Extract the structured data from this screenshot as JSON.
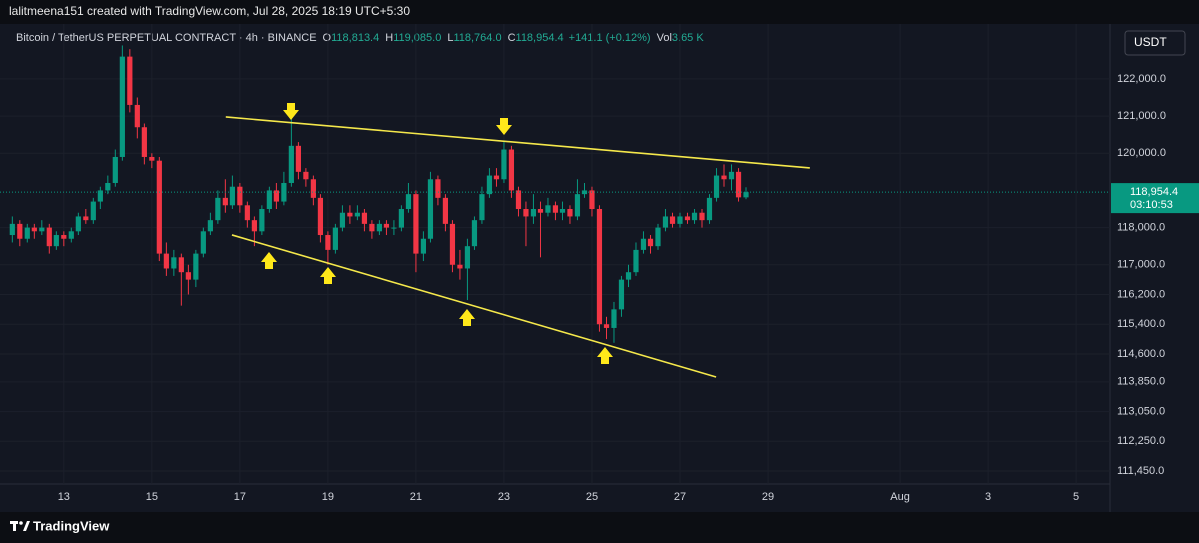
{
  "top_bar": "lalitmeena151 created with TradingView.com, Jul 28, 2025 18:19 UTC+5:30",
  "footer": "TradingView",
  "currency_button": "USDT",
  "chart_data": {
    "type": "candlestick",
    "title": "Bitcoin / TetherUS PERPETUAL CONTRACT · 4h · BINANCE",
    "legend": {
      "open_label": "O",
      "open": "118,813.4",
      "high_label": "H",
      "high": "119,085.0",
      "low_label": "L",
      "low": "118,764.0",
      "close_label": "C",
      "close": "118,954.4",
      "change": "+141.1 (+0.12%)",
      "volume_label": "Vol",
      "volume": "3.65 K"
    },
    "up_color": "#089981",
    "down_color": "#f23645",
    "grid": true,
    "x": [
      11.83,
      12,
      12.17,
      12.33,
      12.5,
      12.67,
      12.83,
      13,
      13.17,
      13.33,
      13.5,
      13.67,
      13.83,
      14,
      14.17,
      14.33,
      14.5,
      14.67,
      14.83,
      15,
      15.17,
      15.33,
      15.5,
      15.67,
      15.83,
      16,
      16.17,
      16.33,
      16.5,
      16.67,
      16.83,
      17,
      17.17,
      17.33,
      17.5,
      17.67,
      17.83,
      18,
      18.17,
      18.33,
      18.5,
      18.67,
      18.83,
      19,
      19.17,
      19.33,
      19.5,
      19.67,
      19.83,
      20,
      20.17,
      20.33,
      20.5,
      20.67,
      20.83,
      21,
      21.17,
      21.33,
      21.5,
      21.67,
      21.83,
      22,
      22.17,
      22.33,
      22.5,
      22.67,
      22.83,
      23,
      23.17,
      23.33,
      23.5,
      23.67,
      23.83,
      24,
      24.17,
      24.33,
      24.5,
      24.67,
      24.83,
      25,
      25.17,
      25.33,
      25.5,
      25.67,
      25.83,
      26,
      26.17,
      26.33,
      26.5,
      26.67,
      26.83,
      27,
      27.17,
      27.33,
      27.5,
      27.67,
      27.83,
      28,
      28.17,
      28.33,
      28.5
    ],
    "open": [
      117800,
      118100,
      117700,
      118000,
      117900,
      118000,
      117500,
      117800,
      117700,
      117900,
      118300,
      118200,
      118700,
      119000,
      119200,
      119900,
      122600,
      121300,
      120700,
      119900,
      119800,
      117300,
      116900,
      117200,
      116800,
      116600,
      117300,
      117900,
      118200,
      118800,
      118600,
      119100,
      118600,
      118200,
      117900,
      118500,
      119000,
      118700,
      119200,
      120200,
      119500,
      119300,
      118800,
      117800,
      117400,
      118000,
      118400,
      118300,
      118400,
      118100,
      117900,
      118100,
      118000,
      118000,
      118500,
      118900,
      117300,
      117700,
      119300,
      118800,
      118100,
      117000,
      116900,
      117500,
      118200,
      118900,
      119400,
      119300,
      120100,
      119000,
      118500,
      118300,
      118500,
      118400,
      118600,
      118400,
      118500,
      118300,
      118900,
      119000,
      118500,
      115400,
      115300,
      115800,
      116600,
      116800,
      117400,
      117700,
      117500,
      118000,
      118300,
      118100,
      118300,
      118200,
      118400,
      118200,
      118800,
      119400,
      119300,
      119500,
      118813.4
    ],
    "high": [
      118300,
      118200,
      118100,
      118100,
      118200,
      118100,
      117900,
      117900,
      118000,
      118400,
      118500,
      118800,
      119100,
      119400,
      120100,
      122900,
      122800,
      121500,
      120800,
      120000,
      119900,
      117600,
      117400,
      117300,
      117000,
      117400,
      118000,
      118400,
      119000,
      119300,
      119400,
      119200,
      118700,
      118300,
      118600,
      119100,
      119200,
      119500,
      121150,
      120300,
      119600,
      119400,
      118900,
      117900,
      118100,
      118600,
      118600,
      118600,
      118500,
      118200,
      118200,
      118200,
      118200,
      118600,
      119200,
      119000,
      117900,
      119500,
      119400,
      118900,
      118200,
      117400,
      117700,
      118300,
      119100,
      119600,
      119600,
      120300,
      120200,
      119100,
      118700,
      118900,
      118700,
      118800,
      118700,
      118700,
      118600,
      119300,
      119200,
      119100,
      118600,
      115600,
      116000,
      116700,
      117000,
      117600,
      117900,
      117800,
      118100,
      118500,
      118400,
      118400,
      118400,
      118500,
      118500,
      118900,
      119600,
      119700,
      119700,
      119600,
      119085.0
    ],
    "low": [
      117600,
      117500,
      117600,
      117700,
      117800,
      117300,
      117400,
      117500,
      117600,
      117800,
      118100,
      118100,
      118500,
      118900,
      119100,
      119800,
      121100,
      120400,
      119700,
      119600,
      117100,
      116700,
      116700,
      115900,
      116200,
      116400,
      117200,
      117800,
      118100,
      118400,
      118500,
      118400,
      118000,
      117500,
      117800,
      118400,
      118500,
      118600,
      119100,
      119300,
      119100,
      118600,
      117600,
      117000,
      117300,
      117900,
      118100,
      118200,
      117900,
      117700,
      117800,
      117800,
      117800,
      117900,
      118400,
      116800,
      117100,
      117600,
      118600,
      117900,
      116800,
      116600,
      116050,
      117400,
      118100,
      118800,
      119100,
      119200,
      118800,
      118300,
      117500,
      118100,
      117200,
      118300,
      118200,
      118200,
      118100,
      118200,
      118800,
      118300,
      115200,
      115000,
      114900,
      115600,
      116400,
      116700,
      117300,
      117300,
      117400,
      117900,
      118000,
      118000,
      118100,
      118100,
      118000,
      118100,
      118700,
      119100,
      119000,
      118700,
      118764.0
    ],
    "close": [
      118100,
      117700,
      118000,
      117900,
      118000,
      117500,
      117800,
      117700,
      117900,
      118300,
      118200,
      118700,
      119000,
      119200,
      119900,
      122600,
      121300,
      120700,
      119900,
      119800,
      117300,
      116900,
      117200,
      116800,
      116600,
      117300,
      117900,
      118200,
      118800,
      118600,
      119100,
      118600,
      118200,
      117900,
      118500,
      119000,
      118700,
      119200,
      120200,
      119500,
      119300,
      118800,
      117800,
      117400,
      118000,
      118400,
      118300,
      118400,
      118100,
      117900,
      118100,
      118000,
      118000,
      118500,
      118900,
      117300,
      117700,
      119300,
      118800,
      118100,
      117000,
      116900,
      117500,
      118200,
      118900,
      119400,
      119300,
      120100,
      119000,
      118500,
      118300,
      118500,
      118400,
      118600,
      118400,
      118500,
      118300,
      118900,
      119000,
      118500,
      115400,
      115300,
      115800,
      116600,
      116800,
      117400,
      117700,
      117500,
      118000,
      118300,
      118100,
      118300,
      118200,
      118400,
      118200,
      118800,
      119400,
      119300,
      119500,
      118813.4,
      118954.4
    ],
    "xlim": [
      11.55,
      36.77
    ],
    "xticks": [
      13,
      15,
      17,
      19,
      21,
      23,
      25,
      27,
      29,
      {
        "value": 32,
        "label": "Aug"
      },
      {
        "value": 34,
        "label": "3"
      },
      {
        "value": 36,
        "label": "5"
      }
    ],
    "ylim": [
      110940,
      123370
    ],
    "yticks": [
      {
        "value": 122000,
        "label": "122,000.0"
      },
      {
        "value": 121000,
        "label": "121,000.0"
      },
      {
        "value": 120000,
        "label": "120,000.0"
      },
      {
        "value": 118000,
        "label": "118,000.0"
      },
      {
        "value": 117000,
        "label": "117,000.0"
      },
      {
        "value": 116200,
        "label": "116,200.0"
      },
      {
        "value": 115400,
        "label": "115,400.0"
      },
      {
        "value": 114600,
        "label": "114,600.0"
      },
      {
        "value": 113850,
        "label": "113,850.0"
      },
      {
        "value": 113050,
        "label": "113,050.0"
      },
      {
        "value": 112250,
        "label": "112,250.0"
      },
      {
        "value": 111450,
        "label": "111,450.0"
      }
    ],
    "last_price": {
      "value": 118954.4,
      "label": "118,954.4"
    },
    "countdown": "03:10:53",
    "trendlines": [
      {
        "x": [
          16.68,
          29.95
        ],
        "y": [
          120977,
          119605
        ],
        "color": "#f5e84b"
      },
      {
        "x": [
          16.82,
          27.82
        ],
        "y": [
          117802,
          113981
        ],
        "color": "#f5e84b"
      }
    ]
  }
}
